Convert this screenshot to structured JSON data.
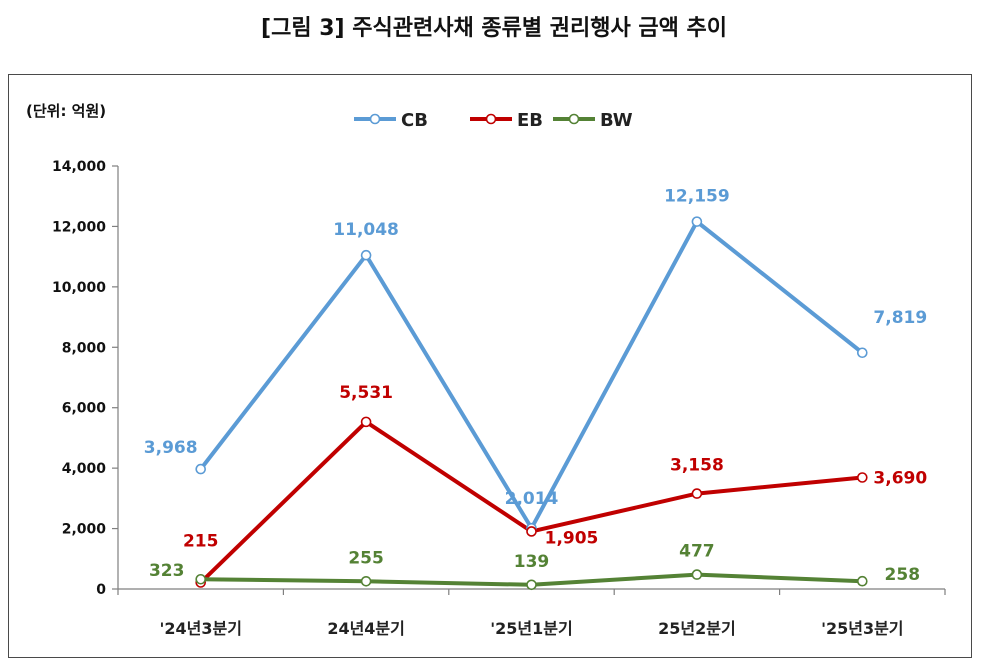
{
  "figure_title": "[그림 3] 주식관련사채 종류별 권리행사 금액 추이",
  "chart_data": {
    "type": "line",
    "unit_label": "(단위: 억원)",
    "categories": [
      "'24년3분기",
      "24년4분기",
      "'25년1분기",
      "25년2분기",
      "'25년3분기"
    ],
    "series": [
      {
        "name": "CB",
        "color": "#5b9bd5",
        "values": [
          3968,
          11048,
          2014,
          12159,
          7819
        ],
        "labels": [
          "3,968",
          "11,048",
          "2,014",
          "12,159",
          "7,819"
        ]
      },
      {
        "name": "EB",
        "color": "#c00000",
        "values": [
          215,
          5531,
          1905,
          3158,
          3690
        ],
        "labels": [
          "215",
          "5,531",
          "1,905",
          "3,158",
          "3,690"
        ]
      },
      {
        "name": "BW",
        "color": "#548235",
        "values": [
          323,
          255,
          139,
          477,
          258
        ],
        "labels": [
          "323",
          "255",
          "139",
          "477",
          "258"
        ]
      }
    ],
    "ylim": [
      0,
      14000
    ],
    "yticks": [
      0,
      2000,
      4000,
      6000,
      8000,
      10000,
      12000,
      14000
    ],
    "ytick_labels": [
      "0",
      "2,000",
      "4,000",
      "6,000",
      "8,000",
      "10,000",
      "12,000",
      "14,000"
    ],
    "legend_position": "top-center",
    "grid": false
  }
}
